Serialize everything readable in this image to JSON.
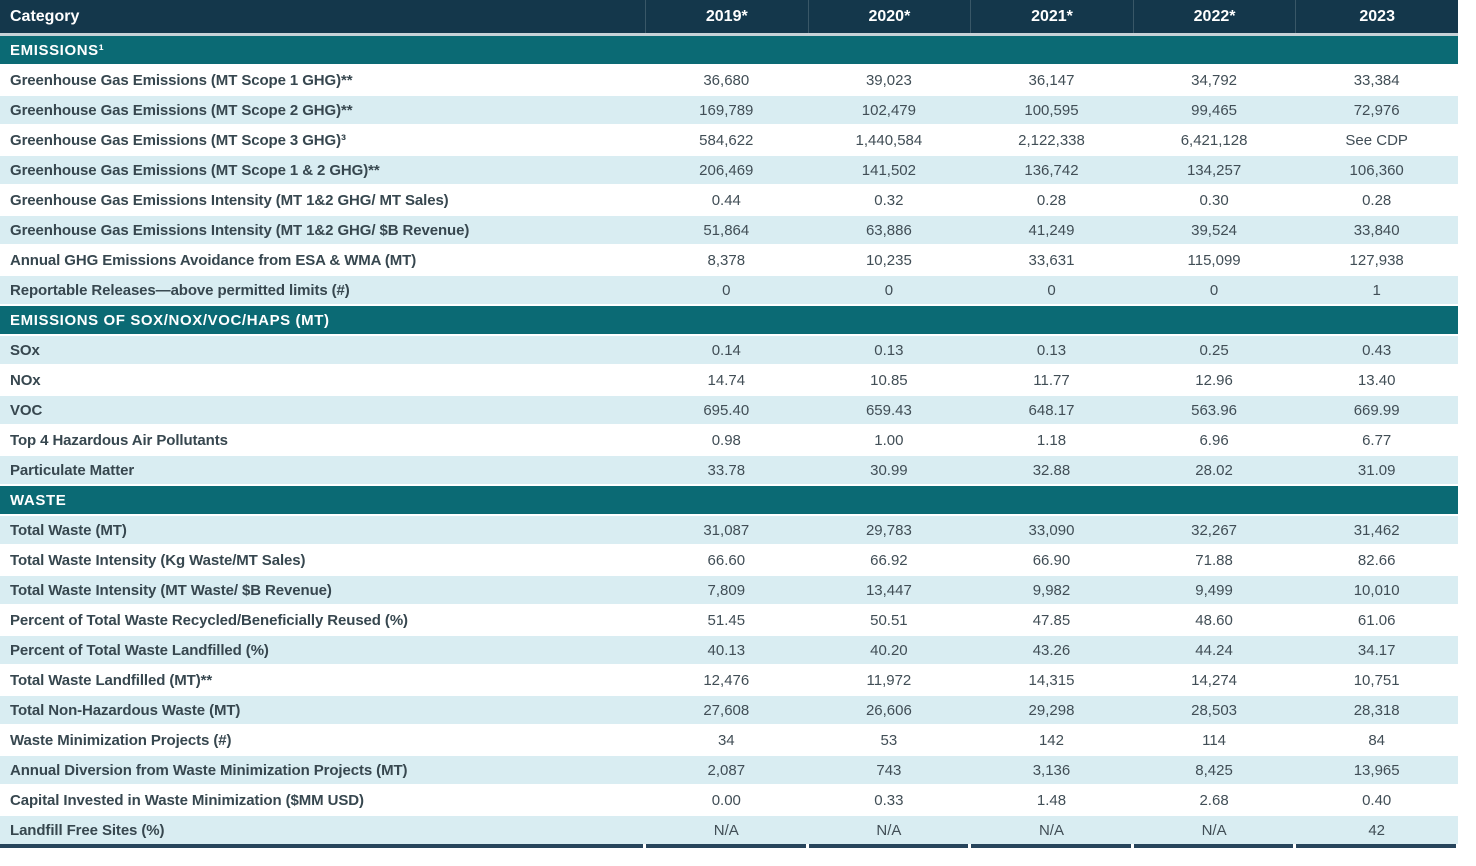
{
  "table": {
    "colors": {
      "header_bg": "#14374b",
      "section_bg": "#0b6a74",
      "stripe_bg": "#d9edf2",
      "bottom_border": "#27455c",
      "label_text": "#37474f",
      "value_text": "#414e56"
    },
    "columns": [
      "Category",
      "2019*",
      "2020*",
      "2021*",
      "2022*",
      "2023"
    ],
    "sections": [
      {
        "title": "EMISSIONS¹",
        "rows": [
          {
            "label": "Greenhouse Gas Emissions (MT Scope 1 GHG)**",
            "values": [
              "36,680",
              "39,023",
              "36,147",
              "34,792",
              "33,384"
            ]
          },
          {
            "label": "Greenhouse Gas Emissions (MT Scope 2 GHG)**",
            "values": [
              "169,789",
              "102,479",
              "100,595",
              "99,465",
              "72,976"
            ]
          },
          {
            "label": "Greenhouse Gas Emissions (MT Scope 3 GHG)³",
            "values": [
              "584,622",
              "1,440,584",
              "2,122,338",
              "6,421,128",
              "See CDP"
            ]
          },
          {
            "label": "Greenhouse Gas Emissions (MT Scope 1 & 2 GHG)**",
            "values": [
              "206,469",
              "141,502",
              "136,742",
              "134,257",
              "106,360"
            ]
          },
          {
            "label": "Greenhouse Gas Emissions Intensity (MT 1&2 GHG/ MT Sales)",
            "values": [
              "0.44",
              "0.32",
              "0.28",
              "0.30",
              "0.28"
            ]
          },
          {
            "label": "Greenhouse Gas Emissions Intensity (MT 1&2 GHG/ $B Revenue)",
            "values": [
              "51,864",
              "63,886",
              "41,249",
              "39,524",
              "33,840"
            ]
          },
          {
            "label": "Annual GHG Emissions Avoidance from ESA & WMA (MT)",
            "values": [
              "8,378",
              "10,235",
              "33,631",
              "115,099",
              "127,938"
            ]
          },
          {
            "label": "Reportable Releases—above permitted limits (#)",
            "values": [
              "0",
              "0",
              "0",
              "0",
              "1"
            ]
          }
        ]
      },
      {
        "title": "EMISSIONS OF SOX/NOX/VOC/HAPS (MT)",
        "rows": [
          {
            "label": "SOx",
            "values": [
              "0.14",
              "0.13",
              "0.13",
              "0.25",
              "0.43"
            ]
          },
          {
            "label": "NOx",
            "values": [
              "14.74",
              "10.85",
              "11.77",
              "12.96",
              "13.40"
            ]
          },
          {
            "label": "VOC",
            "values": [
              "695.40",
              "659.43",
              "648.17",
              "563.96",
              "669.99"
            ]
          },
          {
            "label": "Top 4 Hazardous Air Pollutants",
            "values": [
              "0.98",
              "1.00",
              "1.18",
              "6.96",
              "6.77"
            ]
          },
          {
            "label": "Particulate Matter",
            "values": [
              "33.78",
              "30.99",
              "32.88",
              "28.02",
              "31.09"
            ]
          }
        ]
      },
      {
        "title": "WASTE",
        "rows": [
          {
            "label": "Total Waste (MT)",
            "values": [
              "31,087",
              "29,783",
              "33,090",
              "32,267",
              "31,462"
            ]
          },
          {
            "label": "Total Waste Intensity (Kg Waste/MT Sales)",
            "values": [
              "66.60",
              "66.92",
              "66.90",
              "71.88",
              "82.66"
            ]
          },
          {
            "label": "Total Waste Intensity (MT Waste/ $B Revenue)",
            "values": [
              "7,809",
              "13,447",
              "9,982",
              "9,499",
              "10,010"
            ]
          },
          {
            "label": "Percent of Total Waste Recycled/Beneficially Reused (%)",
            "values": [
              "51.45",
              "50.51",
              "47.85",
              "48.60",
              "61.06"
            ]
          },
          {
            "label": "Percent of Total Waste Landfilled (%)",
            "values": [
              "40.13",
              "40.20",
              "43.26",
              "44.24",
              "34.17"
            ]
          },
          {
            "label": "Total Waste Landfilled (MT)**",
            "values": [
              "12,476",
              "11,972",
              "14,315",
              "14,274",
              "10,751"
            ]
          },
          {
            "label": "Total Non-Hazardous Waste (MT)",
            "values": [
              "27,608",
              "26,606",
              "29,298",
              "28,503",
              "28,318"
            ]
          },
          {
            "label": "Waste Minimization Projects (#)",
            "values": [
              "34",
              "53",
              "142",
              "114",
              "84"
            ]
          },
          {
            "label": "Annual Diversion from Waste Minimization Projects (MT)",
            "values": [
              "2,087",
              "743",
              "3,136",
              "8,425",
              "13,965"
            ]
          },
          {
            "label": "Capital Invested in Waste Minimization ($MM USD)",
            "values": [
              "0.00",
              "0.33",
              "1.48",
              "2.68",
              "0.40"
            ]
          },
          {
            "label": "Landfill Free Sites (%)",
            "values": [
              "N/A",
              "N/A",
              "N/A",
              "N/A",
              "42"
            ]
          }
        ]
      }
    ]
  }
}
